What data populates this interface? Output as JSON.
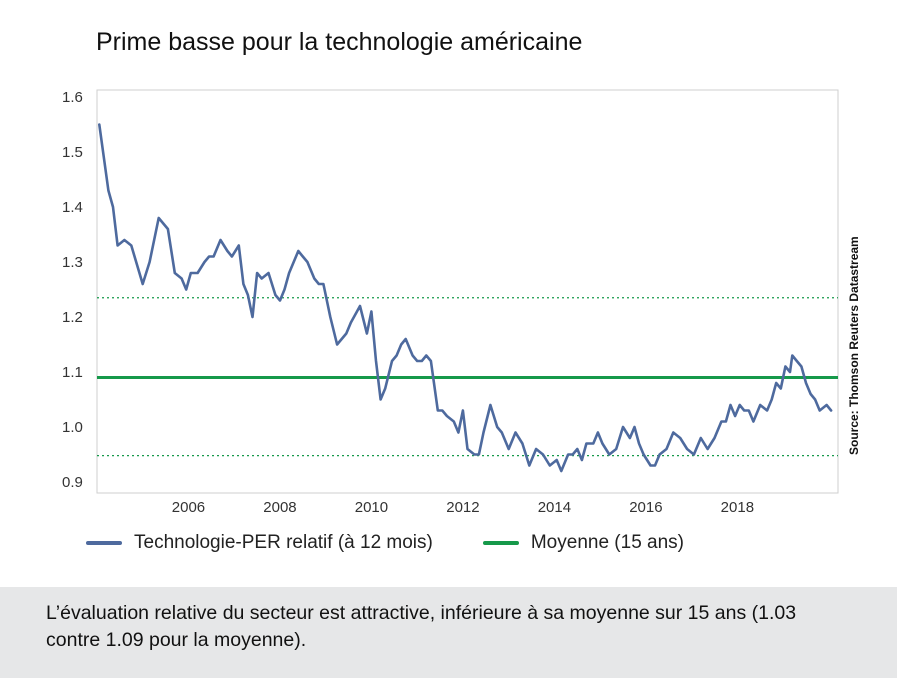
{
  "title": "Prime basse pour la technologie américaine",
  "source": "Source: Thomson Reuters Datastream",
  "legend": {
    "series": "Technologie-PER relatif (à 12 mois)",
    "average": "Moyenne (15 ans)"
  },
  "footer": {
    "text": "L’évaluation relative du secteur est attractive, inférieure à sa moyenne sur 15 ans (1.03 contre 1.09 pour la moyenne)."
  },
  "colors": {
    "series": "#4e6a9e",
    "average": "#16994a",
    "band": "#16994a",
    "plot_border": "#cfcfcf",
    "footer_bg": "#e6e7e8"
  },
  "chart_data": {
    "type": "line",
    "title": "Prime basse pour la technologie américaine",
    "xlabel": "",
    "ylabel": "",
    "xlim": [
      2004.0,
      2020.2
    ],
    "ylim": [
      0.9,
      1.6
    ],
    "x_ticks": [
      2006,
      2008,
      2010,
      2012,
      2014,
      2016,
      2018
    ],
    "y_ticks": [
      0.9,
      1.0,
      1.1,
      1.2,
      1.3,
      1.4,
      1.5,
      1.6
    ],
    "y_tick_labels": [
      "0.9",
      "1.0",
      "1.1",
      "1.2",
      "1.3",
      "1.4",
      "1.5",
      "1.6"
    ],
    "grid": false,
    "legend_position": "bottom",
    "reference_lines": [
      {
        "name": "Moyenne (15 ans)",
        "value": 1.09,
        "style": "solid"
      },
      {
        "name": "upper-band",
        "value": 1.235,
        "style": "dotted"
      },
      {
        "name": "lower-band",
        "value": 0.948,
        "style": "dotted"
      }
    ],
    "series": [
      {
        "name": "Technologie-PER relatif (à 12 mois)",
        "x": [
          2004.05,
          2004.25,
          2004.35,
          2004.45,
          2004.6,
          2004.75,
          2005.0,
          2005.15,
          2005.35,
          2005.55,
          2005.7,
          2005.85,
          2005.95,
          2006.05,
          2006.2,
          2006.35,
          2006.45,
          2006.55,
          2006.7,
          2006.85,
          2006.95,
          2007.1,
          2007.2,
          2007.3,
          2007.4,
          2007.5,
          2007.6,
          2007.75,
          2007.9,
          2008.0,
          2008.1,
          2008.2,
          2008.3,
          2008.4,
          2008.5,
          2008.6,
          2008.75,
          2008.85,
          2008.95,
          2009.1,
          2009.25,
          2009.35,
          2009.45,
          2009.55,
          2009.75,
          2009.9,
          2010.0,
          2010.1,
          2010.2,
          2010.3,
          2010.45,
          2010.55,
          2010.65,
          2010.75,
          2010.9,
          2011.0,
          2011.1,
          2011.2,
          2011.3,
          2011.45,
          2011.55,
          2011.65,
          2011.8,
          2011.9,
          2012.0,
          2012.1,
          2012.25,
          2012.35,
          2012.45,
          2012.6,
          2012.75,
          2012.85,
          2013.0,
          2013.15,
          2013.3,
          2013.45,
          2013.6,
          2013.75,
          2013.9,
          2014.05,
          2014.15,
          2014.3,
          2014.4,
          2014.5,
          2014.6,
          2014.7,
          2014.85,
          2014.95,
          2015.05,
          2015.2,
          2015.35,
          2015.5,
          2015.65,
          2015.75,
          2015.85,
          2015.95,
          2016.1,
          2016.2,
          2016.3,
          2016.45,
          2016.6,
          2016.75,
          2016.9,
          2017.05,
          2017.2,
          2017.35,
          2017.5,
          2017.65,
          2017.75,
          2017.85,
          2017.95,
          2018.05,
          2018.15,
          2018.25,
          2018.35,
          2018.5,
          2018.65,
          2018.75,
          2018.85,
          2018.95,
          2019.05,
          2019.15,
          2019.2,
          2019.3,
          2019.4,
          2019.5,
          2019.6,
          2019.7,
          2019.8,
          2019.95,
          2020.05
        ],
        "values": [
          1.55,
          1.43,
          1.4,
          1.33,
          1.34,
          1.33,
          1.26,
          1.3,
          1.38,
          1.36,
          1.28,
          1.27,
          1.25,
          1.28,
          1.28,
          1.3,
          1.31,
          1.31,
          1.34,
          1.32,
          1.31,
          1.33,
          1.26,
          1.24,
          1.2,
          1.28,
          1.27,
          1.28,
          1.24,
          1.23,
          1.25,
          1.28,
          1.3,
          1.32,
          1.31,
          1.3,
          1.27,
          1.26,
          1.26,
          1.2,
          1.15,
          1.16,
          1.17,
          1.19,
          1.22,
          1.17,
          1.21,
          1.12,
          1.05,
          1.07,
          1.12,
          1.13,
          1.15,
          1.16,
          1.13,
          1.12,
          1.12,
          1.13,
          1.12,
          1.03,
          1.03,
          1.02,
          1.01,
          0.99,
          1.03,
          0.96,
          0.95,
          0.95,
          0.99,
          1.04,
          1.0,
          0.99,
          0.96,
          0.99,
          0.97,
          0.93,
          0.96,
          0.95,
          0.93,
          0.94,
          0.92,
          0.95,
          0.95,
          0.96,
          0.94,
          0.97,
          0.97,
          0.99,
          0.97,
          0.95,
          0.96,
          1.0,
          0.98,
          1.0,
          0.97,
          0.95,
          0.93,
          0.93,
          0.95,
          0.96,
          0.99,
          0.98,
          0.96,
          0.95,
          0.98,
          0.96,
          0.98,
          1.01,
          1.01,
          1.04,
          1.02,
          1.04,
          1.03,
          1.03,
          1.01,
          1.04,
          1.03,
          1.05,
          1.08,
          1.07,
          1.11,
          1.1,
          1.13,
          1.12,
          1.11,
          1.08,
          1.06,
          1.05,
          1.03,
          1.04,
          1.03
        ]
      }
    ]
  }
}
